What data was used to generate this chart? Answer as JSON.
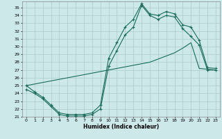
{
  "title": "",
  "xlabel": "Humidex (Indice chaleur)",
  "bg_color": "#cce8e8",
  "grid_color": "#aacccc",
  "line_color": "#1a6b5a",
  "xlim": [
    -0.5,
    23.5
  ],
  "ylim": [
    21.0,
    35.8
  ],
  "xticks": [
    0,
    1,
    2,
    3,
    4,
    5,
    6,
    7,
    8,
    9,
    10,
    11,
    12,
    13,
    14,
    15,
    16,
    17,
    18,
    19,
    20,
    21,
    22,
    23
  ],
  "yticks": [
    21,
    22,
    23,
    24,
    25,
    26,
    27,
    28,
    29,
    30,
    31,
    32,
    33,
    34,
    35
  ],
  "line1_x": [
    0,
    1,
    2,
    3,
    4,
    5,
    6,
    7,
    8,
    9,
    10,
    11,
    12,
    13,
    14,
    15,
    16,
    17,
    18,
    19,
    20,
    21,
    22,
    23
  ],
  "line1_y": [
    24.5,
    24.0,
    23.3,
    22.3,
    21.3,
    21.1,
    21.1,
    21.1,
    21.3,
    22.0,
    27.5,
    29.5,
    31.5,
    32.5,
    35.3,
    34.0,
    33.5,
    34.0,
    33.8,
    32.3,
    31.3,
    30.2,
    27.0,
    27.0
  ],
  "line2_x": [
    0,
    1,
    2,
    3,
    4,
    5,
    6,
    7,
    8,
    9,
    10,
    11,
    12,
    13,
    14,
    15,
    16,
    17,
    18,
    19,
    20,
    21,
    22,
    23
  ],
  "line2_y": [
    25.0,
    24.2,
    23.5,
    22.5,
    21.5,
    21.3,
    21.3,
    21.3,
    21.5,
    22.5,
    28.5,
    30.5,
    32.5,
    33.5,
    35.5,
    34.2,
    34.0,
    34.5,
    34.2,
    32.8,
    32.5,
    30.8,
    27.3,
    27.2
  ],
  "line3_x": [
    0,
    1,
    2,
    3,
    4,
    5,
    6,
    7,
    8,
    9,
    10,
    11,
    12,
    13,
    14,
    15,
    16,
    17,
    18,
    19,
    20,
    21,
    22,
    23
  ],
  "line3_y": [
    25.0,
    25.2,
    25.4,
    25.6,
    25.8,
    26.0,
    26.2,
    26.4,
    26.6,
    26.8,
    27.0,
    27.2,
    27.4,
    27.6,
    27.8,
    28.0,
    28.4,
    28.8,
    29.2,
    29.8,
    30.5,
    27.2,
    27.1,
    27.0
  ]
}
